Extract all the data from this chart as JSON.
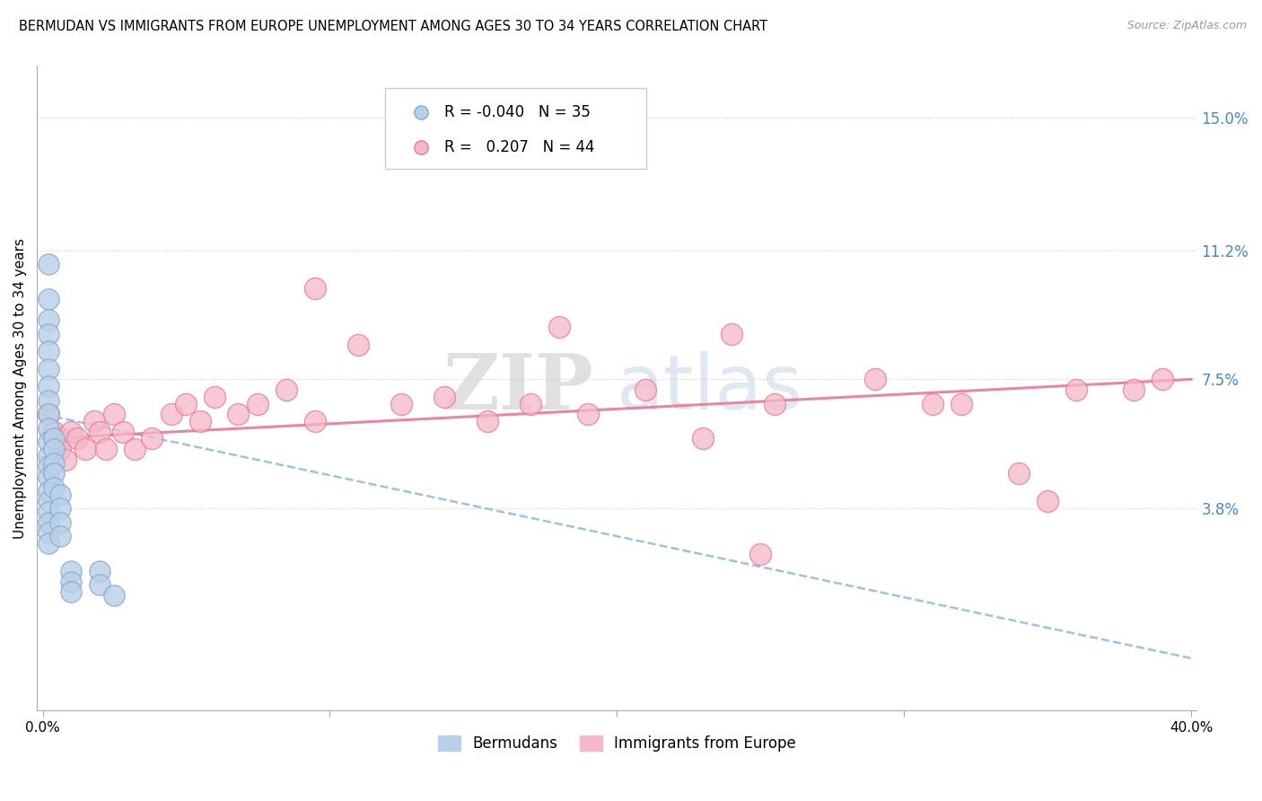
{
  "title": "BERMUDAN VS IMMIGRANTS FROM EUROPE UNEMPLOYMENT AMONG AGES 30 TO 34 YEARS CORRELATION CHART",
  "source": "Source: ZipAtlas.com",
  "ylabel": "Unemployment Among Ages 30 to 34 years",
  "y_ticks_right": [
    0.038,
    0.075,
    0.112,
    0.15
  ],
  "y_tick_labels_right": [
    "3.8%",
    "7.5%",
    "11.2%",
    "15.0%"
  ],
  "xlim": [
    -0.002,
    0.402
  ],
  "ylim": [
    -0.02,
    0.165
  ],
  "bermudans_color": "#b8d0e8",
  "immigrants_color": "#f5b8c8",
  "bermudans_edge": "#88aacc",
  "immigrants_edge": "#e87898",
  "trend_bermudans_color": "#88bbdd",
  "trend_immigrants_color": "#e87898",
  "watermark_zip": "ZIP",
  "watermark_atlas": "atlas",
  "legend_R_bermudans": "-0.040",
  "legend_N_bermudans": "35",
  "legend_R_immigrants": "0.207",
  "legend_N_immigrants": "44",
  "bermudans_x": [
    0.002,
    0.002,
    0.002,
    0.002,
    0.002,
    0.002,
    0.002,
    0.002,
    0.002,
    0.002,
    0.002,
    0.002,
    0.002,
    0.002,
    0.002,
    0.002,
    0.002,
    0.002,
    0.002,
    0.002,
    0.004,
    0.004,
    0.004,
    0.004,
    0.004,
    0.006,
    0.006,
    0.006,
    0.006,
    0.01,
    0.01,
    0.01,
    0.02,
    0.02,
    0.025
  ],
  "bermudans_y": [
    0.108,
    0.098,
    0.092,
    0.088,
    0.083,
    0.078,
    0.073,
    0.069,
    0.065,
    0.061,
    0.057,
    0.053,
    0.05,
    0.047,
    0.043,
    0.04,
    0.037,
    0.034,
    0.031,
    0.028,
    0.058,
    0.055,
    0.051,
    0.048,
    0.044,
    0.042,
    0.038,
    0.034,
    0.03,
    0.02,
    0.017,
    0.014,
    0.02,
    0.016,
    0.013
  ],
  "immigrants_x": [
    0.002,
    0.004,
    0.006,
    0.006,
    0.008,
    0.01,
    0.012,
    0.015,
    0.018,
    0.02,
    0.022,
    0.025,
    0.028,
    0.032,
    0.038,
    0.045,
    0.05,
    0.055,
    0.06,
    0.068,
    0.075,
    0.085,
    0.095,
    0.11,
    0.125,
    0.14,
    0.155,
    0.17,
    0.19,
    0.21,
    0.23,
    0.255,
    0.29,
    0.32,
    0.34,
    0.36,
    0.38,
    0.39,
    0.095,
    0.18,
    0.24,
    0.31,
    0.35,
    0.25
  ],
  "immigrants_y": [
    0.065,
    0.06,
    0.058,
    0.055,
    0.052,
    0.06,
    0.058,
    0.055,
    0.063,
    0.06,
    0.055,
    0.065,
    0.06,
    0.055,
    0.058,
    0.065,
    0.068,
    0.063,
    0.07,
    0.065,
    0.068,
    0.072,
    0.063,
    0.085,
    0.068,
    0.07,
    0.063,
    0.068,
    0.065,
    0.072,
    0.058,
    0.068,
    0.075,
    0.068,
    0.048,
    0.072,
    0.072,
    0.075,
    0.101,
    0.09,
    0.088,
    0.068,
    0.04,
    0.025
  ],
  "trend_b_x0": 0.0,
  "trend_b_x1": 0.4,
  "trend_b_y0": 0.065,
  "trend_b_y1": -0.005,
  "trend_i_x0": 0.0,
  "trend_i_x1": 0.4,
  "trend_i_y0": 0.058,
  "trend_i_y1": 0.075
}
